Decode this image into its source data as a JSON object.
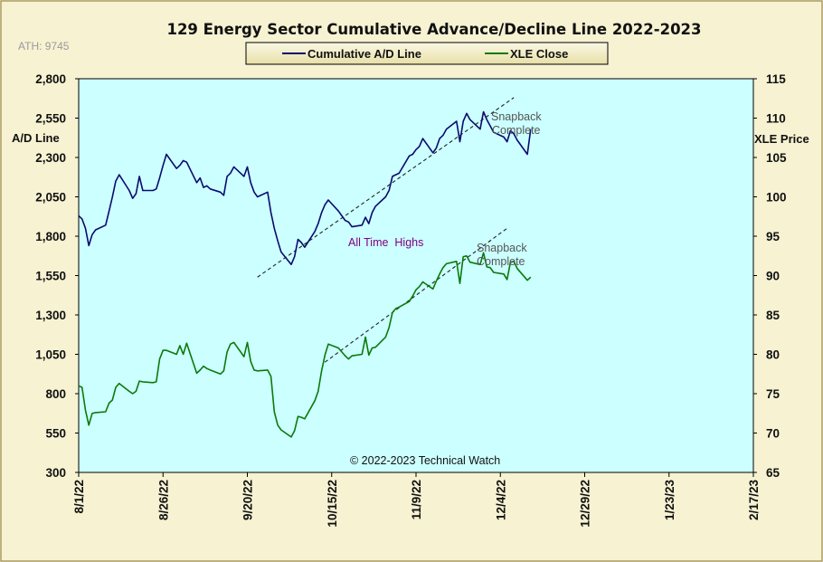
{
  "chart_data": {
    "type": "line",
    "title": "129 Energy Sector Cumulative Advance/Decline Line 2022-2023",
    "ath_label": "ATH: 9745",
    "y_left": {
      "label": "A/D Line",
      "min": 300,
      "max": 2800,
      "ticks": [
        "2,800",
        "2,550",
        "2,300",
        "2,050",
        "1,800",
        "1,550",
        "1,300",
        "1,050",
        "800",
        "550",
        "300"
      ]
    },
    "y_right": {
      "label": "XLE Price",
      "min": 65,
      "max": 115,
      "ticks": [
        "115",
        "110",
        "105",
        "100",
        "95",
        "90",
        "85",
        "80",
        "75",
        "70",
        "65"
      ]
    },
    "x_axis": {
      "ticks": [
        "8/1/22",
        "8/26/22",
        "9/20/22",
        "10/15/22",
        "11/9/22",
        "12/4/22",
        "12/29/22",
        "1/23/23",
        "2/17/23"
      ]
    },
    "legend": {
      "position": "top",
      "entries": [
        {
          "name": "Cumulative A/D Line",
          "color": "#0a0a6e"
        },
        {
          "name": "XLE Close",
          "color": "#0a7a0a"
        }
      ]
    },
    "x_days": [
      0,
      1,
      2,
      3,
      4,
      5,
      8,
      9,
      10,
      11,
      12,
      15,
      16,
      17,
      18,
      19,
      22,
      23,
      24,
      25,
      26,
      29,
      30,
      31,
      32,
      35,
      36,
      37,
      38,
      39,
      42,
      43,
      44,
      45,
      46,
      49,
      50,
      51,
      52,
      53,
      56,
      57,
      58,
      59,
      60,
      63,
      64,
      65,
      66,
      67,
      70,
      71,
      72,
      73,
      74,
      77,
      78,
      79,
      80,
      81,
      84,
      85,
      86,
      87,
      88,
      91,
      92,
      93,
      94,
      95,
      98,
      99,
      100,
      101,
      102,
      105,
      106,
      107,
      108,
      109,
      112,
      113,
      114,
      115,
      116,
      119,
      120,
      121,
      122,
      123,
      126,
      127,
      128,
      129,
      130,
      133,
      134
    ],
    "series": [
      {
        "name": "Cumulative A/D Line",
        "axis": "left",
        "color": "#0a0a6e",
        "values": [
          1930,
          1910,
          1850,
          1740,
          1810,
          1840,
          1870,
          1960,
          2050,
          2150,
          2190,
          2090,
          2040,
          2070,
          2180,
          2090,
          2090,
          2100,
          2170,
          2250,
          2320,
          2230,
          2250,
          2280,
          2270,
          2140,
          2170,
          2110,
          2120,
          2100,
          2080,
          2060,
          2180,
          2200,
          2240,
          2180,
          2240,
          2140,
          2080,
          2050,
          2080,
          1950,
          1850,
          1770,
          1700,
          1620,
          1670,
          1780,
          1760,
          1730,
          1830,
          1880,
          1950,
          2000,
          2030,
          1960,
          1930,
          1900,
          1890,
          1860,
          1870,
          1920,
          1880,
          1950,
          1990,
          2050,
          2090,
          2180,
          2190,
          2200,
          2310,
          2320,
          2350,
          2370,
          2420,
          2330,
          2360,
          2420,
          2440,
          2480,
          2530,
          2400,
          2530,
          2580,
          2540,
          2480,
          2590,
          2540,
          2500,
          2460,
          2430,
          2400,
          2470,
          2450,
          2410,
          2320,
          2480
        ]
      },
      {
        "name": "XLE Close",
        "axis": "right",
        "color": "#0a7a0a",
        "values": [
          76.0,
          75.8,
          72.9,
          71.0,
          72.5,
          72.6,
          72.7,
          73.8,
          74.2,
          75.8,
          76.3,
          75.3,
          75.0,
          75.3,
          76.6,
          76.5,
          76.4,
          76.5,
          79.4,
          80.5,
          80.5,
          80.0,
          81.1,
          80.0,
          81.4,
          77.6,
          78.0,
          78.5,
          78.2,
          78.0,
          77.5,
          77.9,
          80.3,
          81.3,
          81.5,
          79.7,
          81.5,
          79.1,
          78.0,
          77.9,
          78.0,
          77.2,
          72.7,
          71.0,
          70.4,
          69.5,
          70.3,
          72.1,
          72.0,
          71.8,
          74.1,
          75.3,
          77.9,
          79.9,
          81.3,
          80.8,
          80.3,
          79.8,
          79.4,
          79.8,
          80.0,
          82.2,
          79.9,
          80.8,
          80.9,
          82.2,
          83.4,
          85.3,
          85.8,
          86.0,
          86.7,
          87.4,
          88.2,
          88.6,
          89.2,
          88.3,
          89.3,
          90.2,
          91.0,
          91.5,
          91.8,
          89.0,
          92.4,
          92.5,
          91.7,
          91.4,
          92.9,
          91.1,
          91.0,
          90.4,
          90.2,
          89.5,
          91.7,
          91.8,
          90.9,
          89.4,
          89.8
        ]
      }
    ],
    "annotations": [
      {
        "text": [
          "Snapback",
          "Complete"
        ],
        "color": "#555555"
      },
      {
        "text": [
          "Snapback",
          "Complete"
        ],
        "color": "#555555"
      },
      {
        "text": [
          "All Time  Highs"
        ],
        "color": "#800080"
      }
    ],
    "trendlines": [
      {
        "from": [
          53,
          1540
        ],
        "to": [
          129,
          2680
        ]
      },
      {
        "from": [
          73,
          1000
        ],
        "to": [
          127,
          1850
        ]
      }
    ],
    "copyright": "© 2022-2023  Technical Watch",
    "colors": {
      "plot_background": "#ccffff",
      "outer_background": "#f6f2d2",
      "border": "#a89a5c"
    }
  }
}
